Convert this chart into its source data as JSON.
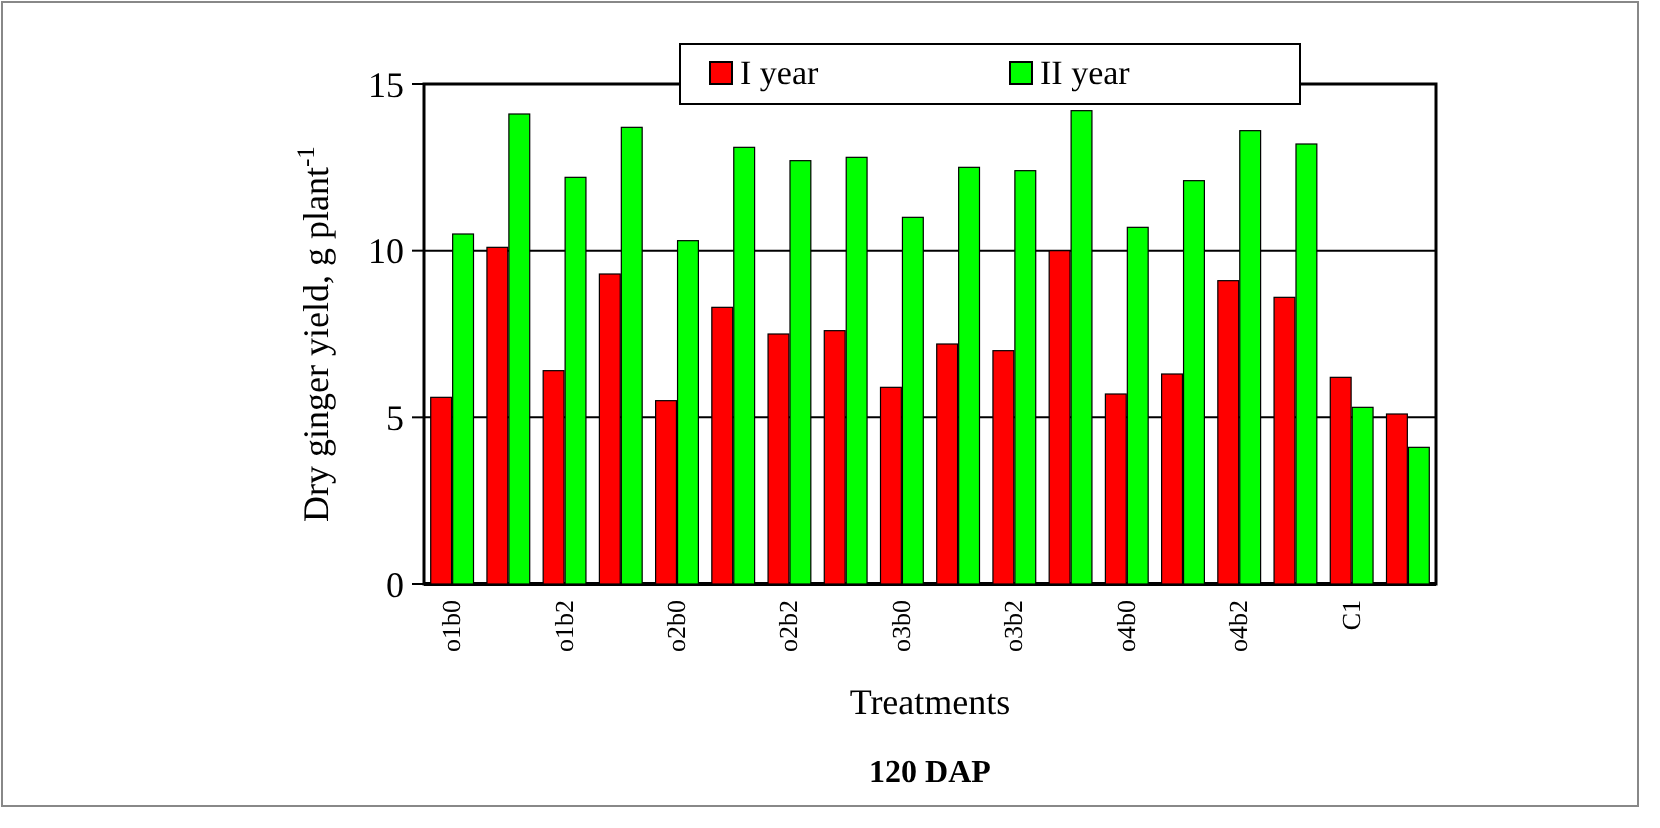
{
  "chart_data": {
    "type": "bar",
    "title": "120 DAP",
    "xlabel": "Treatments",
    "ylabel": "Dry ginger yield, g plant$^{-1}$",
    "categories": [
      "o1b0",
      null,
      "o1b2",
      null,
      "o2b0",
      null,
      "o2b2",
      null,
      "o3b0",
      null,
      "o3b2",
      null,
      "o4b0",
      null,
      "o4b2",
      null,
      "C1",
      null
    ],
    "series": [
      {
        "name": "I year",
        "color": "#ff0000",
        "values": [
          5.6,
          10.1,
          6.4,
          9.3,
          5.5,
          8.3,
          7.5,
          7.6,
          5.9,
          7.2,
          7.0,
          10.0,
          5.7,
          6.3,
          9.1,
          8.6,
          6.2,
          5.1
        ]
      },
      {
        "name": "II year",
        "color": "#00ff00",
        "values": [
          10.5,
          14.1,
          12.2,
          13.7,
          10.3,
          13.1,
          12.7,
          12.8,
          11.0,
          12.5,
          12.4,
          14.2,
          10.7,
          12.1,
          13.6,
          13.2,
          5.3,
          4.1
        ]
      }
    ],
    "ylim": [
      0,
      15
    ],
    "yticks": [
      0,
      5,
      10,
      15
    ],
    "grid": "y",
    "legend": "top"
  }
}
